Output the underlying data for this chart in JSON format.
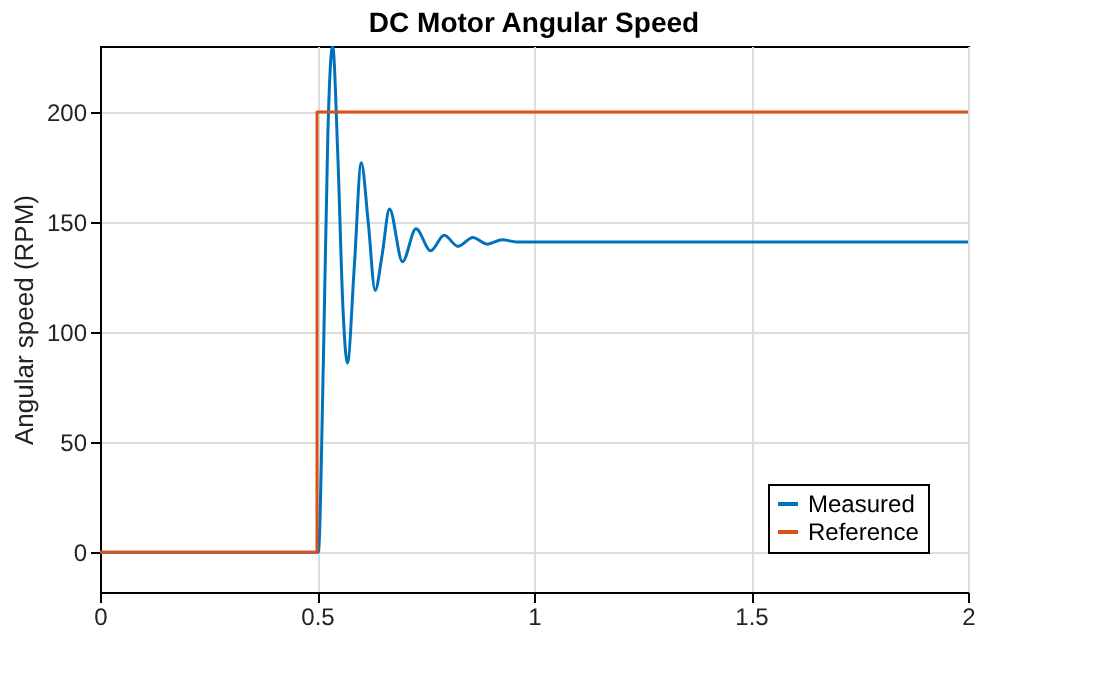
{
  "chart_data": {
    "type": "line",
    "title": "DC Motor Angular Speed",
    "ylabel": "Angular speed (RPM)",
    "xlim": [
      0,
      2
    ],
    "xticks": [
      0,
      0.5,
      1,
      1.5,
      2
    ],
    "ylim": [
      -18,
      230
    ],
    "yticks": [
      0,
      50,
      100,
      150,
      200
    ],
    "grid": true,
    "legend": "bottom right",
    "line_style": "solid",
    "marker": "none",
    "series": [
      {
        "name": "Measured",
        "color": "#0072bd",
        "x": [
          0,
          0.503,
          0.515,
          0.525,
          0.536,
          0.548,
          0.56,
          0.57,
          0.586,
          0.602,
          0.618,
          0.634,
          0.65,
          0.667,
          0.697,
          0.728,
          0.762,
          0.793,
          0.825,
          0.859,
          0.892,
          0.927,
          0.96,
          1.0,
          1.5,
          2.0
        ],
        "values": [
          0,
          0,
          90,
          190,
          230,
          180,
          110,
          86,
          130,
          177,
          150,
          119,
          135,
          156,
          132,
          147,
          137,
          144,
          139,
          143,
          140,
          142,
          141,
          141,
          141,
          141
        ]
      },
      {
        "name": "Reference",
        "color": "#d95319",
        "x": [
          0,
          0.5,
          0.5,
          2
        ],
        "values": [
          0,
          0,
          200,
          200
        ]
      }
    ]
  }
}
